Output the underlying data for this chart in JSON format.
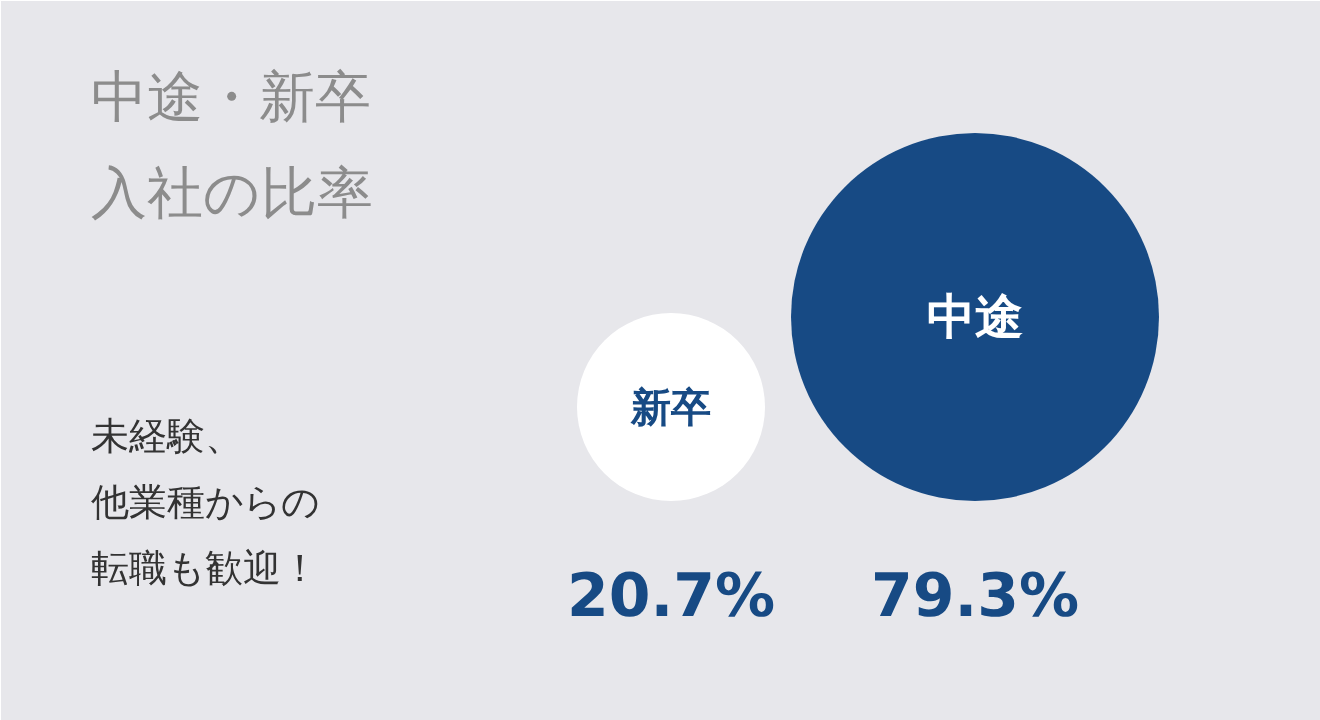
{
  "chart_data": {
    "type": "other",
    "title": "中途・新卒入社の比率",
    "categories": [
      "新卒",
      "中途"
    ],
    "values": [
      20.7,
      79.3
    ],
    "colors": [
      "#ffffff",
      "#174a84"
    ],
    "value_labels": [
      "20.7%",
      "79.3%"
    ],
    "annotations": [
      "未経験、",
      "他業種からの",
      "転職も歓迎！"
    ]
  }
}
